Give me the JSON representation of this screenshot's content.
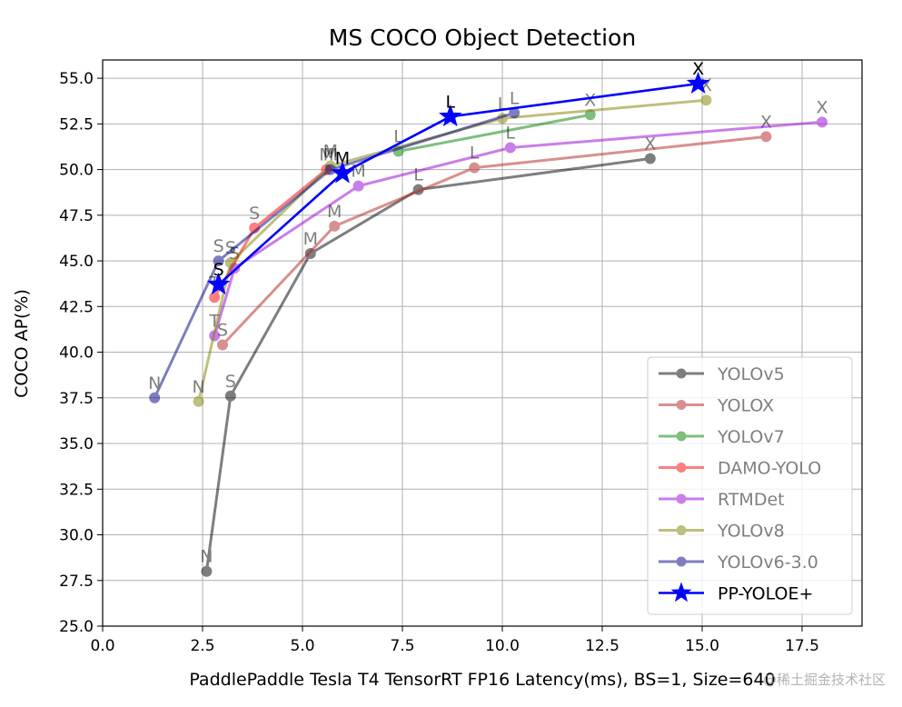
{
  "chart_data": {
    "type": "line",
    "title": "MS COCO Object Detection",
    "xlabel": "PaddlePaddle Tesla T4 TensorRT FP16 Latency(ms), BS=1, Size=640",
    "ylabel": "COCO AP(%)",
    "xlim": [
      0.0,
      19.0
    ],
    "ylim": [
      25.0,
      56.0
    ],
    "xticks": [
      "0.0",
      "2.5",
      "5.0",
      "7.5",
      "10.0",
      "12.5",
      "15.0",
      "17.5"
    ],
    "yticks": [
      "25.0",
      "27.5",
      "30.0",
      "32.5",
      "35.0",
      "37.5",
      "40.0",
      "42.5",
      "45.0",
      "47.5",
      "50.0",
      "52.5",
      "55.0"
    ],
    "grid": true,
    "legend_position": "lower-right",
    "series": [
      {
        "name": "YOLOv5",
        "color": "#000000",
        "alpha": 0.5,
        "marker": "circle",
        "points": [
          {
            "x": 2.6,
            "y": 28.0,
            "label": "N"
          },
          {
            "x": 3.2,
            "y": 37.6,
            "label": "S"
          },
          {
            "x": 5.2,
            "y": 45.4,
            "label": "M"
          },
          {
            "x": 7.9,
            "y": 48.9,
            "label": "L"
          },
          {
            "x": 13.7,
            "y": 50.6,
            "label": "X"
          }
        ]
      },
      {
        "name": "YOLOX",
        "color": "#b22222",
        "alpha": 0.5,
        "marker": "circle",
        "points": [
          {
            "x": 3.0,
            "y": 40.4,
            "label": "S"
          },
          {
            "x": 5.8,
            "y": 46.9,
            "label": "M"
          },
          {
            "x": 9.3,
            "y": 50.1,
            "label": "L"
          },
          {
            "x": 16.6,
            "y": 51.8,
            "label": "X"
          }
        ]
      },
      {
        "name": "YOLOv7",
        "color": "#008000",
        "alpha": 0.5,
        "marker": "circle",
        "points": [
          {
            "x": 7.4,
            "y": 51.0,
            "label": "L"
          },
          {
            "x": 12.2,
            "y": 53.0,
            "label": "X"
          }
        ]
      },
      {
        "name": "DAMO-YOLO",
        "color": "#ff0000",
        "alpha": 0.5,
        "marker": "circle",
        "points": [
          {
            "x": 2.8,
            "y": 43.0,
            "label": "T"
          },
          {
            "x": 3.8,
            "y": 46.8,
            "label": "S"
          },
          {
            "x": 5.6,
            "y": 50.0,
            "label": "M"
          }
        ]
      },
      {
        "name": "RTMDet",
        "color": "#9400d3",
        "alpha": 0.5,
        "marker": "circle",
        "points": [
          {
            "x": 2.8,
            "y": 40.9,
            "label": "T"
          },
          {
            "x": 3.3,
            "y": 44.6,
            "label": "S"
          },
          {
            "x": 6.4,
            "y": 49.1,
            "label": "M"
          },
          {
            "x": 10.2,
            "y": 51.2,
            "label": "L"
          },
          {
            "x": 18.0,
            "y": 52.6,
            "label": "X"
          }
        ]
      },
      {
        "name": "YOLOv8",
        "color": "#808000",
        "alpha": 0.5,
        "marker": "circle",
        "points": [
          {
            "x": 2.4,
            "y": 37.3,
            "label": "N"
          },
          {
            "x": 3.2,
            "y": 44.9,
            "label": "S"
          },
          {
            "x": 5.7,
            "y": 50.2,
            "label": "M"
          },
          {
            "x": 10.0,
            "y": 52.8,
            "label": "L"
          },
          {
            "x": 15.1,
            "y": 53.8,
            "label": "X"
          }
        ]
      },
      {
        "name": "YOLOv6-3.0",
        "color": "#000080",
        "alpha": 0.5,
        "marker": "circle",
        "points": [
          {
            "x": 1.3,
            "y": 37.5,
            "label": "N"
          },
          {
            "x": 2.9,
            "y": 45.0,
            "label": "S"
          },
          {
            "x": 5.7,
            "y": 50.0,
            "label": "M"
          },
          {
            "x": 10.3,
            "y": 53.1,
            "label": "L"
          }
        ]
      },
      {
        "name": "PP-YOLOE+",
        "color": "#0000ff",
        "alpha": 1.0,
        "marker": "star",
        "points": [
          {
            "x": 2.9,
            "y": 43.7,
            "label": "S"
          },
          {
            "x": 6.0,
            "y": 49.8,
            "label": "M"
          },
          {
            "x": 8.7,
            "y": 52.9,
            "label": "L"
          },
          {
            "x": 14.9,
            "y": 54.7,
            "label": "X"
          }
        ]
      }
    ]
  },
  "watermark": "@稀土掘金技术社区"
}
